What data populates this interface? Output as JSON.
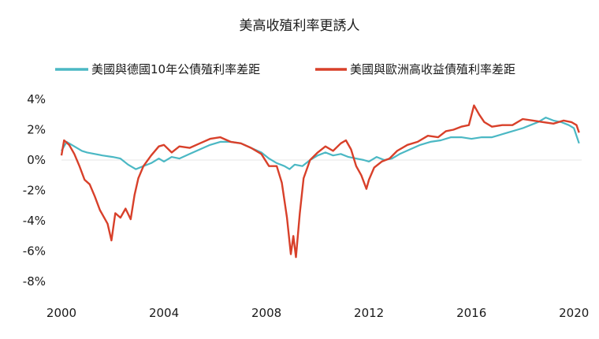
{
  "chart_data": {
    "type": "line",
    "title": "美高收殖利率更誘人",
    "xlabel": "",
    "ylabel": "",
    "xlim": [
      2000,
      2020.3
    ],
    "ylim": [
      -8,
      4
    ],
    "x_ticks": [
      "2000",
      "2004",
      "2008",
      "2012",
      "2016",
      "2020"
    ],
    "y_ticks": [
      "4%",
      "2%",
      "0%",
      "-2%",
      "-4%",
      "-6%",
      "-8%"
    ],
    "grid": "zero-line only",
    "legend_position": "top",
    "colors": {
      "series1": "#4bb8c4",
      "series2": "#d8402a"
    },
    "series": [
      {
        "name": "美國與德國10年公債殖利率差距",
        "points": [
          [
            2000.0,
            0.6
          ],
          [
            2000.2,
            1.2
          ],
          [
            2000.5,
            0.9
          ],
          [
            2000.8,
            0.6
          ],
          [
            2001.0,
            0.5
          ],
          [
            2001.3,
            0.4
          ],
          [
            2001.6,
            0.3
          ],
          [
            2002.0,
            0.2
          ],
          [
            2002.3,
            0.1
          ],
          [
            2002.6,
            -0.3
          ],
          [
            2002.9,
            -0.6
          ],
          [
            2003.2,
            -0.4
          ],
          [
            2003.5,
            -0.2
          ],
          [
            2003.8,
            0.1
          ],
          [
            2004.0,
            -0.1
          ],
          [
            2004.3,
            0.2
          ],
          [
            2004.6,
            0.1
          ],
          [
            2005.0,
            0.4
          ],
          [
            2005.4,
            0.7
          ],
          [
            2005.8,
            1.0
          ],
          [
            2006.2,
            1.2
          ],
          [
            2006.6,
            1.2
          ],
          [
            2007.0,
            1.1
          ],
          [
            2007.4,
            0.8
          ],
          [
            2007.8,
            0.5
          ],
          [
            2008.1,
            0.1
          ],
          [
            2008.4,
            -0.2
          ],
          [
            2008.7,
            -0.4
          ],
          [
            2008.9,
            -0.6
          ],
          [
            2009.1,
            -0.3
          ],
          [
            2009.4,
            -0.4
          ],
          [
            2009.7,
            0.0
          ],
          [
            2010.0,
            0.3
          ],
          [
            2010.3,
            0.5
          ],
          [
            2010.6,
            0.3
          ],
          [
            2010.9,
            0.4
          ],
          [
            2011.2,
            0.2
          ],
          [
            2011.5,
            0.1
          ],
          [
            2011.8,
            0.0
          ],
          [
            2012.0,
            -0.1
          ],
          [
            2012.3,
            0.2
          ],
          [
            2012.6,
            0.0
          ],
          [
            2012.9,
            0.1
          ],
          [
            2013.2,
            0.4
          ],
          [
            2013.6,
            0.7
          ],
          [
            2014.0,
            1.0
          ],
          [
            2014.4,
            1.2
          ],
          [
            2014.8,
            1.3
          ],
          [
            2015.2,
            1.5
          ],
          [
            2015.6,
            1.5
          ],
          [
            2016.0,
            1.4
          ],
          [
            2016.4,
            1.5
          ],
          [
            2016.8,
            1.5
          ],
          [
            2017.0,
            1.6
          ],
          [
            2017.4,
            1.8
          ],
          [
            2017.8,
            2.0
          ],
          [
            2018.0,
            2.1
          ],
          [
            2018.3,
            2.3
          ],
          [
            2018.6,
            2.5
          ],
          [
            2018.9,
            2.8
          ],
          [
            2019.2,
            2.6
          ],
          [
            2019.5,
            2.5
          ],
          [
            2019.8,
            2.3
          ],
          [
            2020.0,
            2.1
          ],
          [
            2020.2,
            1.1
          ]
        ]
      },
      {
        "name": "美國與歐洲高收益債殖利率差距",
        "points": [
          [
            2000.0,
            0.3
          ],
          [
            2000.1,
            1.3
          ],
          [
            2000.3,
            1.0
          ],
          [
            2000.5,
            0.4
          ],
          [
            2000.7,
            -0.4
          ],
          [
            2000.9,
            -1.3
          ],
          [
            2001.1,
            -1.6
          ],
          [
            2001.3,
            -2.4
          ],
          [
            2001.5,
            -3.3
          ],
          [
            2001.7,
            -3.9
          ],
          [
            2001.8,
            -4.2
          ],
          [
            2001.95,
            -5.3
          ],
          [
            2002.1,
            -3.5
          ],
          [
            2002.3,
            -3.8
          ],
          [
            2002.5,
            -3.2
          ],
          [
            2002.7,
            -3.9
          ],
          [
            2002.85,
            -2.3
          ],
          [
            2003.0,
            -1.2
          ],
          [
            2003.2,
            -0.4
          ],
          [
            2003.5,
            0.3
          ],
          [
            2003.8,
            0.9
          ],
          [
            2004.0,
            1.0
          ],
          [
            2004.3,
            0.5
          ],
          [
            2004.6,
            0.9
          ],
          [
            2005.0,
            0.8
          ],
          [
            2005.4,
            1.1
          ],
          [
            2005.8,
            1.4
          ],
          [
            2006.2,
            1.5
          ],
          [
            2006.6,
            1.2
          ],
          [
            2007.0,
            1.1
          ],
          [
            2007.4,
            0.8
          ],
          [
            2007.8,
            0.4
          ],
          [
            2008.1,
            -0.4
          ],
          [
            2008.4,
            -0.4
          ],
          [
            2008.6,
            -1.5
          ],
          [
            2008.8,
            -3.8
          ],
          [
            2008.95,
            -6.2
          ],
          [
            2009.05,
            -5.0
          ],
          [
            2009.15,
            -6.4
          ],
          [
            2009.3,
            -3.5
          ],
          [
            2009.45,
            -1.2
          ],
          [
            2009.7,
            0.0
          ],
          [
            2010.0,
            0.5
          ],
          [
            2010.3,
            0.9
          ],
          [
            2010.6,
            0.6
          ],
          [
            2010.9,
            1.1
          ],
          [
            2011.1,
            1.3
          ],
          [
            2011.3,
            0.7
          ],
          [
            2011.5,
            -0.4
          ],
          [
            2011.7,
            -1.0
          ],
          [
            2011.9,
            -1.9
          ],
          [
            2012.0,
            -1.3
          ],
          [
            2012.2,
            -0.5
          ],
          [
            2012.5,
            -0.1
          ],
          [
            2012.8,
            0.1
          ],
          [
            2013.1,
            0.6
          ],
          [
            2013.5,
            1.0
          ],
          [
            2013.9,
            1.2
          ],
          [
            2014.3,
            1.6
          ],
          [
            2014.7,
            1.5
          ],
          [
            2015.0,
            1.9
          ],
          [
            2015.3,
            2.0
          ],
          [
            2015.6,
            2.2
          ],
          [
            2015.9,
            2.3
          ],
          [
            2016.1,
            3.6
          ],
          [
            2016.3,
            3.0
          ],
          [
            2016.5,
            2.5
          ],
          [
            2016.8,
            2.2
          ],
          [
            2017.2,
            2.3
          ],
          [
            2017.6,
            2.3
          ],
          [
            2018.0,
            2.7
          ],
          [
            2018.4,
            2.6
          ],
          [
            2018.8,
            2.5
          ],
          [
            2019.2,
            2.4
          ],
          [
            2019.6,
            2.6
          ],
          [
            2019.9,
            2.5
          ],
          [
            2020.1,
            2.3
          ],
          [
            2020.2,
            1.8
          ]
        ]
      }
    ]
  }
}
